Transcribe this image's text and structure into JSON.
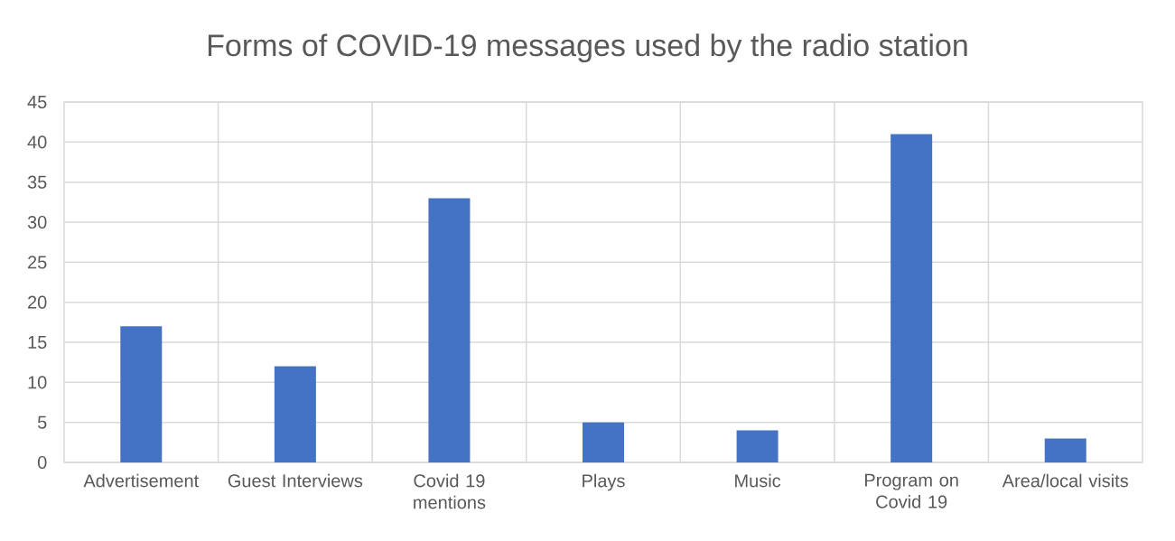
{
  "chart_data": {
    "type": "bar",
    "title": "Forms of COVID-19 messages used by the radio station",
    "categories": [
      "Advertisement",
      "Guest Interviews",
      "Covid 19 mentions",
      "Plays",
      "Music",
      "Program on Covid 19",
      "Area/local visits"
    ],
    "values": [
      17,
      12,
      33,
      5,
      4,
      41,
      3
    ],
    "color": "#4472c4",
    "ylim": [
      0,
      45
    ],
    "yticks": [
      0,
      5,
      10,
      15,
      20,
      25,
      30,
      35,
      40,
      45
    ],
    "grid": true
  }
}
